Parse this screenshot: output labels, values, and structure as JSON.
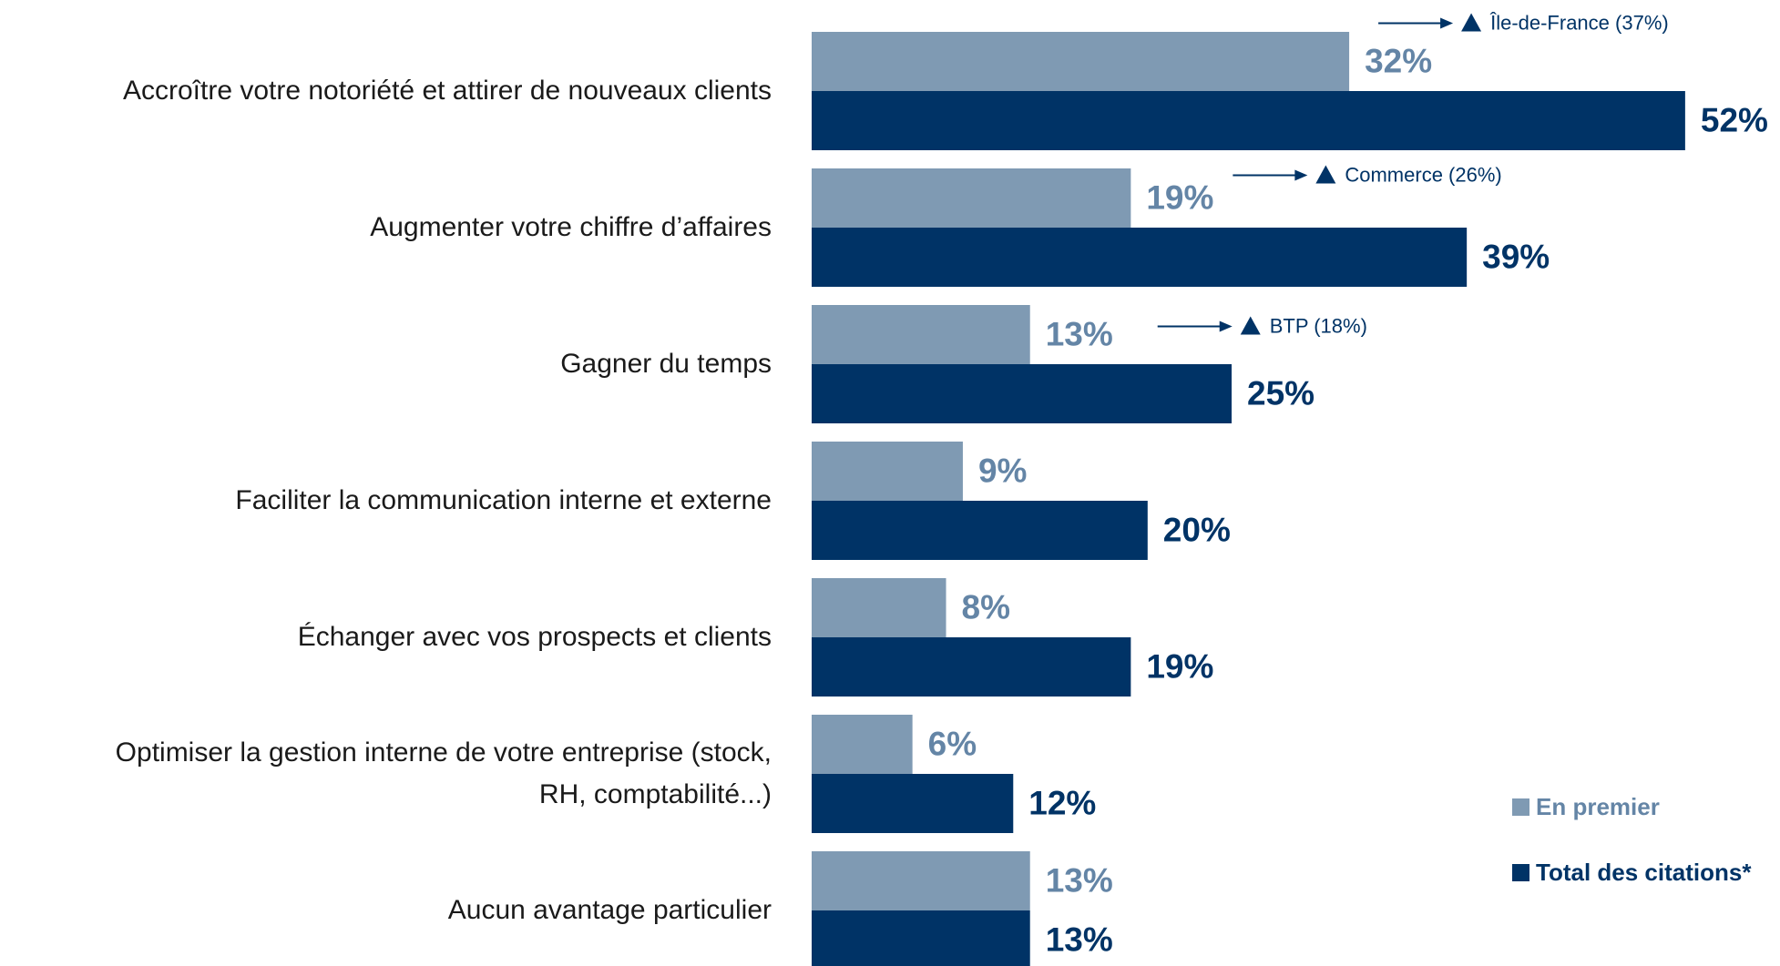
{
  "chart_data": {
    "type": "bar",
    "orientation": "horizontal",
    "categories": [
      "Accroître votre notoriété et attirer de nouveaux clients",
      "Augmenter votre chiffre d’affaires",
      "Gagner du temps",
      "Faciliter la communication interne et externe",
      "Échanger avec vos prospects et clients",
      "Optimiser la gestion interne de votre entreprise (stock,\nRH, comptabilité...)",
      "Aucun avantage particulier"
    ],
    "series": [
      {
        "name": "En premier",
        "color": "#7f9ab3",
        "label_color": "#6485a6",
        "values": [
          32,
          19,
          13,
          9,
          8,
          6,
          13
        ],
        "value_labels": [
          "32%",
          "19%",
          "13%",
          "9%",
          "8%",
          "6%",
          "13%"
        ]
      },
      {
        "name": "Total des citations*",
        "color": "#003366",
        "label_color": "#003366",
        "values": [
          52,
          39,
          25,
          20,
          19,
          12,
          13
        ],
        "value_labels": [
          "52%",
          "39%",
          "25%",
          "20%",
          "19%",
          "12%",
          "13%"
        ]
      }
    ],
    "annotations": [
      "Île-de-France (37%)",
      "Commerce (26%)",
      "BTP (18%)"
    ],
    "legend": "bottom-right"
  }
}
